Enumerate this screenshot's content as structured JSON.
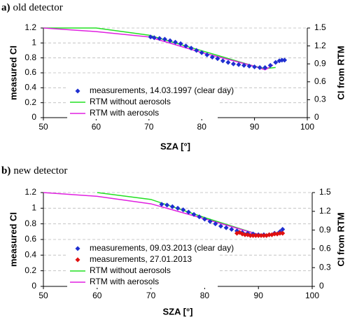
{
  "chart_data": [
    {
      "type": "line",
      "label": "a)",
      "title": "old detector",
      "xlabel": "SZA [°]",
      "ylabel": "measured CI",
      "y2label": "CI from RTM",
      "xlim": [
        50,
        100
      ],
      "xticks": [
        50,
        60,
        70,
        80,
        90,
        100
      ],
      "ylim": [
        0,
        1.2
      ],
      "yticks": [
        0,
        0.2,
        0.4,
        0.6,
        0.8,
        1,
        1.2
      ],
      "y2lim": [
        0,
        1.5
      ],
      "y2ticks": [
        0,
        0.3,
        0.6,
        0.9,
        1.2,
        1.5
      ],
      "grid": true,
      "legend": "lower left",
      "series": [
        {
          "name": "measurements, 14.03.1997 (clear day)",
          "color": "#1f2fd0",
          "marker": "diamond",
          "axis": "y",
          "x": [
            70.3,
            71,
            72,
            73,
            74,
            75,
            76,
            77,
            78,
            79,
            80,
            81,
            82,
            83,
            84,
            85,
            86,
            87,
            88,
            89,
            90,
            91,
            92,
            93,
            94,
            94.7,
            95.2,
            95.7
          ],
          "values": [
            1.08,
            1.07,
            1.06,
            1.05,
            1.03,
            1.01,
            0.99,
            0.96,
            0.93,
            0.9,
            0.87,
            0.84,
            0.81,
            0.79,
            0.76,
            0.74,
            0.72,
            0.71,
            0.7,
            0.69,
            0.68,
            0.67,
            0.67,
            0.7,
            0.74,
            0.76,
            0.77,
            0.77
          ]
        },
        {
          "name": "RTM without aerosols",
          "color": "#22e022",
          "marker": "line",
          "axis": "y2",
          "x": [
            50,
            60,
            70,
            80,
            90,
            92,
            94
          ],
          "values": [
            1.5,
            1.5,
            1.38,
            1.12,
            0.86,
            0.82,
            0.84
          ]
        },
        {
          "name": "RTM with aerosols",
          "color": "#e020e0",
          "marker": "line",
          "axis": "y2",
          "x": [
            50,
            60,
            70,
            80,
            90,
            92,
            93.5
          ],
          "values": [
            1.5,
            1.44,
            1.35,
            1.09,
            0.86,
            0.8,
            0.88
          ]
        }
      ]
    },
    {
      "type": "line",
      "label": "b)",
      "title": "new detector",
      "xlabel": "SZA [°]",
      "ylabel": "measured CI",
      "y2label": "CI from RTM",
      "xlim": [
        50,
        100
      ],
      "xticks": [
        50,
        60,
        70,
        80,
        90,
        100
      ],
      "ylim": [
        0,
        1.2
      ],
      "yticks": [
        0,
        0.2,
        0.4,
        0.6,
        0.8,
        1,
        1.2
      ],
      "y2lim": [
        0,
        1.5
      ],
      "y2ticks": [
        0,
        0.3,
        0.6,
        0.9,
        1.2,
        1.5
      ],
      "grid": true,
      "legend": "lower left",
      "series": [
        {
          "name": "measurements, 09.03.2013 (clear day)",
          "color": "#1f2fd0",
          "marker": "diamond",
          "axis": "y",
          "x": [
            72,
            73,
            74,
            75,
            76,
            77,
            78,
            79,
            80,
            81,
            82,
            83,
            84,
            85,
            86,
            87,
            88,
            89,
            90,
            91,
            92,
            93,
            94,
            94.5
          ],
          "values": [
            1.05,
            1.04,
            1.02,
            1.0,
            0.98,
            0.95,
            0.92,
            0.89,
            0.86,
            0.83,
            0.8,
            0.77,
            0.75,
            0.73,
            0.71,
            0.69,
            0.68,
            0.67,
            0.66,
            0.66,
            0.66,
            0.68,
            0.7,
            0.73
          ]
        },
        {
          "name": "measurements, 27.01.2013",
          "color": "#e01010",
          "marker": "diamond",
          "axis": "y",
          "x": [
            86,
            86.5,
            87,
            87.5,
            88,
            88.5,
            89,
            89.5,
            90,
            90.5,
            91,
            91.5,
            92,
            92.5,
            93,
            93.5,
            94,
            94.5
          ],
          "values": [
            0.68,
            0.69,
            0.67,
            0.66,
            0.66,
            0.65,
            0.65,
            0.65,
            0.65,
            0.65,
            0.65,
            0.65,
            0.66,
            0.66,
            0.67,
            0.67,
            0.68,
            0.68
          ]
        },
        {
          "name": "RTM without aerosols",
          "color": "#22e022",
          "marker": "line",
          "axis": "y2",
          "x": [
            60,
            70,
            80,
            90,
            92,
            94
          ],
          "values": [
            1.5,
            1.39,
            1.1,
            0.83,
            0.81,
            0.85
          ]
        },
        {
          "name": "RTM with aerosols",
          "color": "#e020e0",
          "marker": "line",
          "axis": "y2",
          "x": [
            50,
            60,
            70,
            80,
            90,
            92,
            94
          ],
          "values": [
            1.5,
            1.44,
            1.32,
            1.08,
            0.83,
            0.81,
            0.85
          ]
        }
      ]
    }
  ]
}
